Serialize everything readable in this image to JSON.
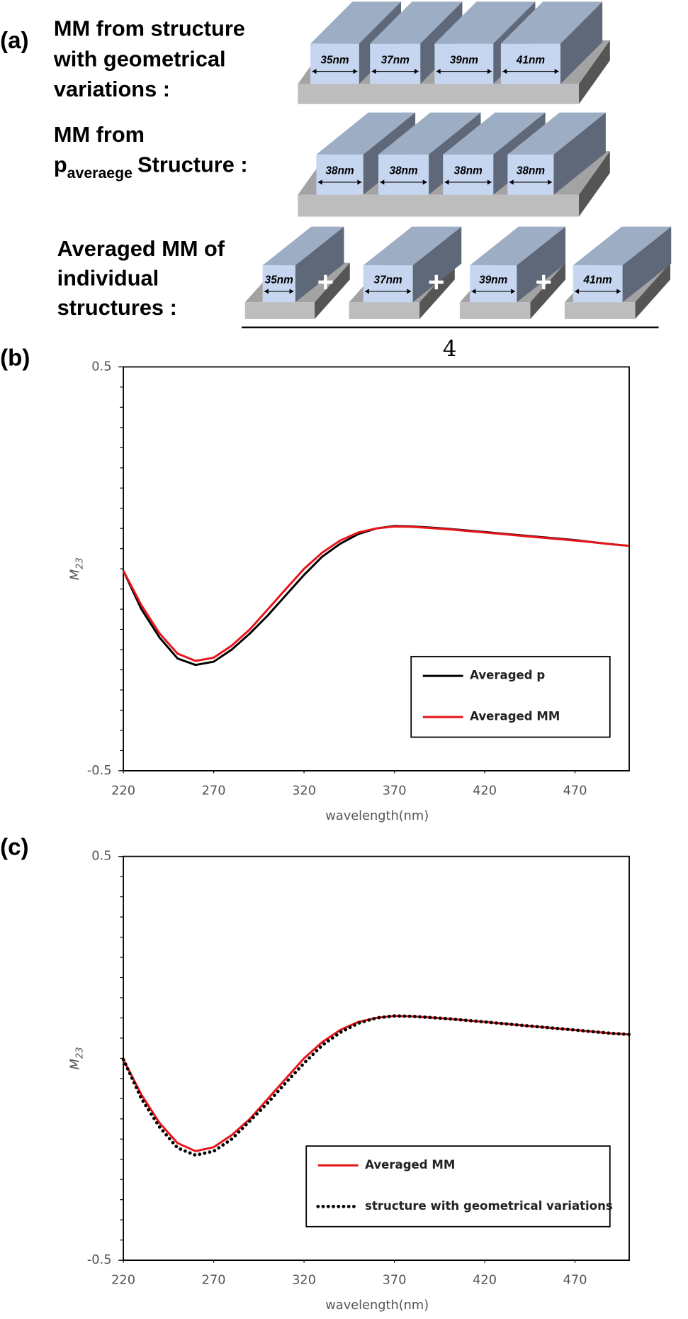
{
  "diagram": {
    "panel_label": "(a)",
    "row1": {
      "label": [
        "MM from structure",
        "with geometrical",
        "variations :"
      ],
      "widths": [
        "35nm",
        "37nm",
        "39nm",
        "41nm"
      ]
    },
    "row2": {
      "label": [
        "MM from"
      ],
      "p": "p",
      "p_sub": "averaege",
      "tail": "Structure :",
      "widths": [
        "38nm",
        "38nm",
        "38nm",
        "38nm"
      ]
    },
    "row3": {
      "label": [
        "Averaged MM of",
        "individual",
        "structures :"
      ],
      "widths": [
        "35nm",
        "37nm",
        "39nm",
        "41nm"
      ],
      "plus": "+",
      "divisor": "4"
    }
  },
  "chart_data": [
    {
      "type": "line",
      "panel_label": "(b)",
      "ylabel": "M",
      "ylabel_sub": "23",
      "xlabel": "wavelength(nm)",
      "x": [
        220,
        230,
        240,
        250,
        260,
        270,
        280,
        290,
        300,
        310,
        320,
        330,
        340,
        350,
        360,
        370,
        380,
        390,
        400,
        410,
        420,
        430,
        440,
        450,
        460,
        470,
        480,
        490,
        500
      ],
      "series": [
        {
          "name": "Averaged p",
          "color": "#000000",
          "dash": "solid",
          "values": [
            -0.005,
            -0.1,
            -0.17,
            -0.222,
            -0.238,
            -0.23,
            -0.2,
            -0.16,
            -0.115,
            -0.065,
            -0.015,
            0.03,
            0.062,
            0.086,
            0.1,
            0.106,
            0.105,
            0.102,
            0.099,
            0.095,
            0.091,
            0.087,
            0.083,
            0.079,
            0.075,
            0.071,
            0.066,
            0.061,
            0.057
          ]
        },
        {
          "name": "Averaged MM",
          "color": "#e8141a",
          "dash": "solid",
          "values": [
            -0.005,
            -0.09,
            -0.16,
            -0.21,
            -0.228,
            -0.22,
            -0.19,
            -0.15,
            -0.1,
            -0.05,
            0.0,
            0.04,
            0.07,
            0.09,
            0.1,
            0.105,
            0.104,
            0.101,
            0.098,
            0.094,
            0.09,
            0.086,
            0.082,
            0.078,
            0.074,
            0.07,
            0.066,
            0.061,
            0.057
          ]
        }
      ],
      "xlim": [
        220,
        500
      ],
      "ylim": [
        -0.5,
        0.5
      ],
      "xticks": [
        220,
        270,
        320,
        370,
        420,
        470
      ],
      "yticks": [
        -0.5,
        0.5
      ],
      "yminor": 0.05,
      "legend": "lower right"
    },
    {
      "type": "line",
      "panel_label": "(c)",
      "ylabel": "M",
      "ylabel_sub": "23",
      "xlabel": "wavelength(nm)",
      "x": [
        220,
        230,
        240,
        250,
        260,
        270,
        280,
        290,
        300,
        310,
        320,
        330,
        340,
        350,
        360,
        370,
        380,
        390,
        400,
        410,
        420,
        430,
        440,
        450,
        460,
        470,
        480,
        490,
        500
      ],
      "series": [
        {
          "name": "Averaged MM",
          "color": "#e8141a",
          "dash": "solid",
          "values": [
            -0.003,
            -0.09,
            -0.16,
            -0.21,
            -0.23,
            -0.22,
            -0.19,
            -0.15,
            -0.1,
            -0.05,
            0.0,
            0.04,
            0.07,
            0.09,
            0.1,
            0.105,
            0.104,
            0.101,
            0.098,
            0.094,
            0.09,
            0.086,
            0.082,
            0.078,
            0.074,
            0.07,
            0.066,
            0.062,
            0.059
          ]
        },
        {
          "name": "structure with geometrical variations",
          "color": "#000000",
          "dash": "dotted",
          "values": [
            -0.003,
            -0.1,
            -0.17,
            -0.222,
            -0.24,
            -0.23,
            -0.2,
            -0.155,
            -0.11,
            -0.06,
            -0.012,
            0.032,
            0.064,
            0.087,
            0.1,
            0.105,
            0.104,
            0.101,
            0.098,
            0.094,
            0.09,
            0.086,
            0.082,
            0.078,
            0.074,
            0.07,
            0.066,
            0.062,
            0.059
          ]
        }
      ],
      "xlim": [
        220,
        500
      ],
      "ylim": [
        -0.5,
        0.5
      ],
      "xticks": [
        220,
        270,
        320,
        370,
        420,
        470
      ],
      "yticks": [
        -0.5,
        0.5
      ],
      "yminor": 0.05,
      "legend": "lower right"
    }
  ]
}
